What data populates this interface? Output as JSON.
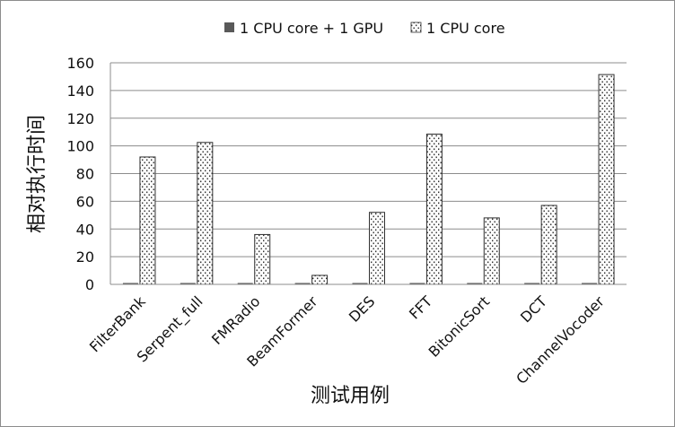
{
  "chart_data": {
    "type": "bar",
    "title": "",
    "xlabel": "测试用例",
    "ylabel": "相对执行时间",
    "ylim": [
      0,
      160
    ],
    "yticks": [
      0,
      20,
      40,
      60,
      80,
      100,
      120,
      140,
      160
    ],
    "grid": true,
    "legend_position": "top",
    "categories": [
      "FilterBank",
      "Serpent_full",
      "FMRadio",
      "BeamFormer",
      "DES",
      "FFT",
      "BitonicSort",
      "DCT",
      "ChannelVocoder"
    ],
    "series": [
      {
        "name": "1 CPU core + 1 GPU",
        "color": "#595959",
        "pattern": "solid",
        "values": [
          1,
          1,
          1,
          1,
          1,
          1,
          1,
          1,
          1
        ]
      },
      {
        "name": "1 CPU core",
        "color": "#404040",
        "pattern": "dotted",
        "values": [
          92,
          102.5,
          36,
          6.5,
          52,
          108.5,
          48,
          57,
          151.5
        ]
      }
    ]
  }
}
